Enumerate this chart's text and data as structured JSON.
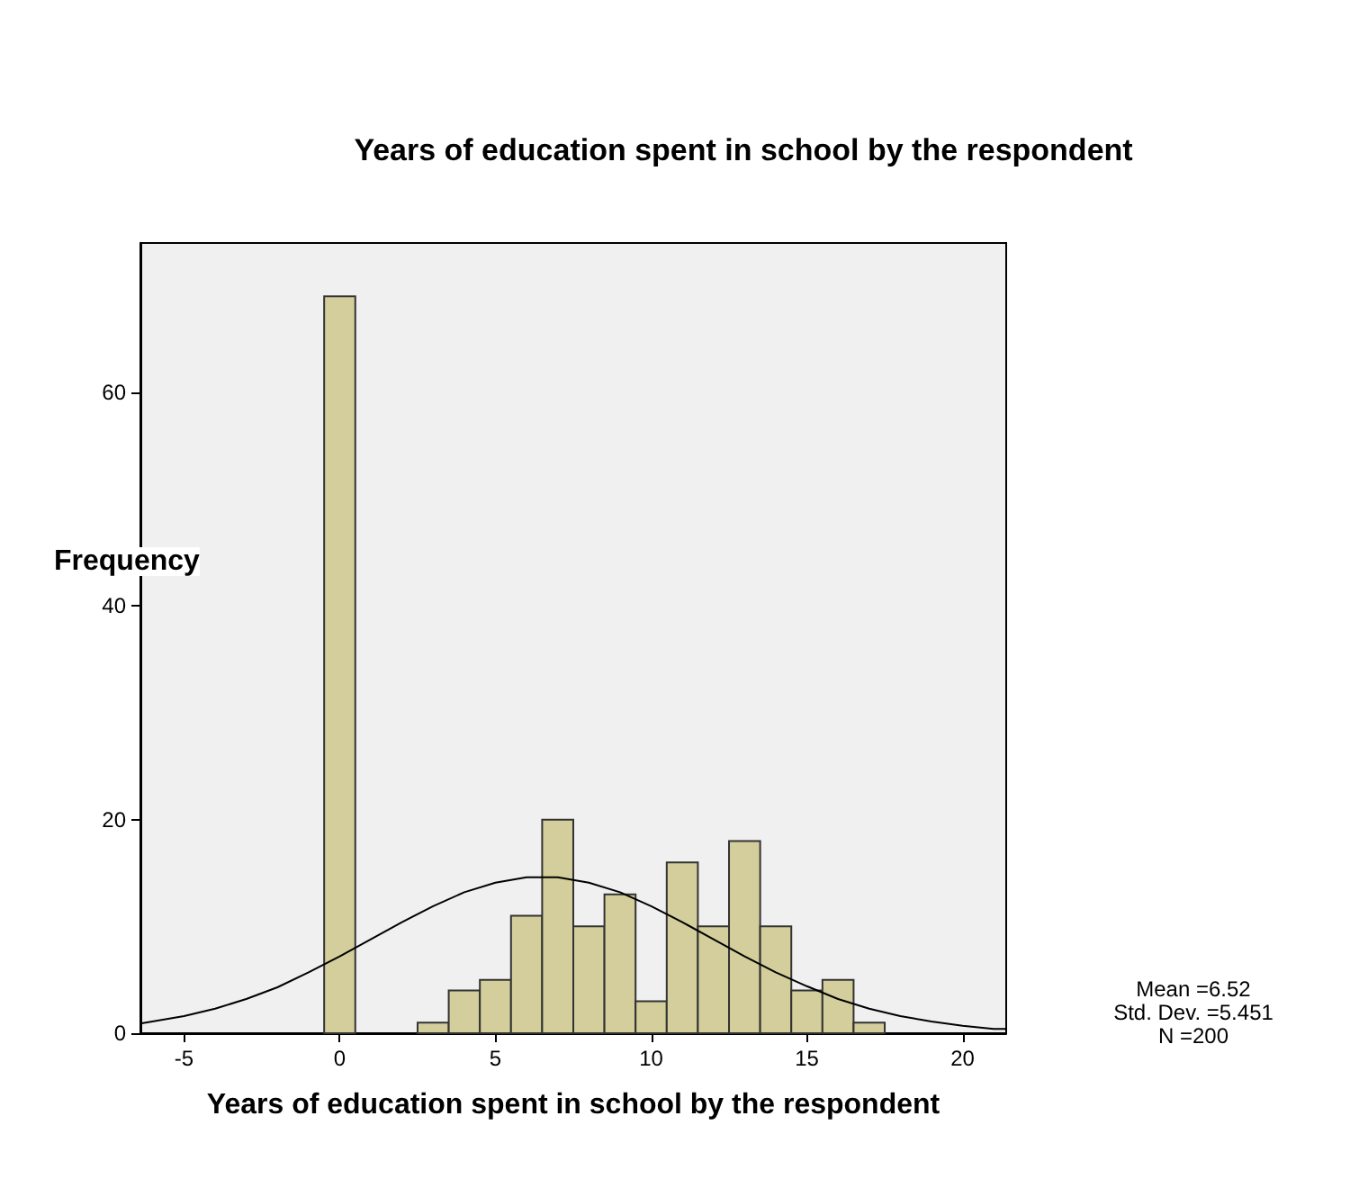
{
  "chart_data": {
    "type": "histogram",
    "title": "Years of education spent in school by the respondent",
    "xlabel": "Years of education spent in school by the respondent",
    "ylabel": "Frequency",
    "bins": [
      -0.5,
      0.5,
      1.5,
      2.5,
      3.5,
      4.5,
      5.5,
      6.5,
      7.5,
      8.5,
      9.5,
      10.5,
      11.5,
      12.5,
      13.5,
      14.5,
      15.5,
      16.5,
      17.5
    ],
    "values": [
      69,
      0,
      0,
      1,
      4,
      5,
      11,
      20,
      10,
      13,
      3,
      16,
      10,
      18,
      10,
      4,
      5,
      1
    ],
    "color": "#d3ce9b",
    "series": [
      {
        "type": "line",
        "color": "#000000",
        "x": [
          -6.4,
          -5,
          -4,
          -3,
          -2,
          -1,
          0,
          1,
          2,
          3,
          4,
          5,
          6,
          7,
          8,
          9,
          10,
          11,
          12,
          13,
          14,
          15,
          16,
          17,
          18,
          19,
          20,
          21,
          21.4
        ],
        "values": [
          0.9,
          1.6,
          2.3,
          3.2,
          4.3,
          5.7,
          7.2,
          8.8,
          10.4,
          11.9,
          13.2,
          14.1,
          14.6,
          14.6,
          14.1,
          13.2,
          11.9,
          10.4,
          8.8,
          7.2,
          5.7,
          4.4,
          3.2,
          2.3,
          1.6,
          1.1,
          0.7,
          0.4,
          0.4
        ]
      }
    ],
    "xlim": [
      -6.4,
      21.4
    ],
    "xticks": [
      -5,
      0,
      5,
      10,
      15,
      20
    ],
    "ylim": [
      0,
      74
    ],
    "yticks": [
      0,
      20,
      40,
      60
    ],
    "grid": false,
    "annotations": [
      "Mean =6.52\nStd. Dev. =5.451\nN =200"
    ]
  }
}
